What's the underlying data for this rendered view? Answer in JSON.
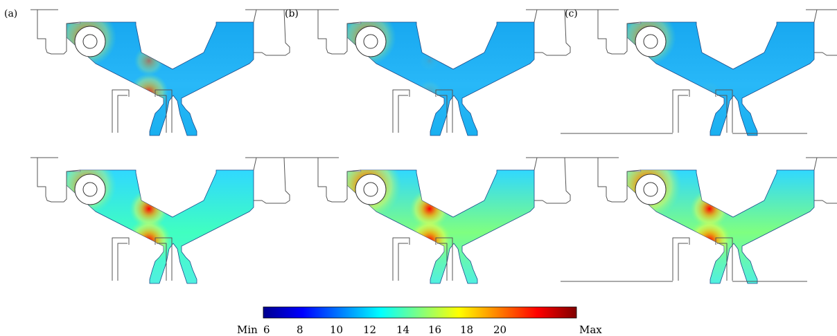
{
  "panels": [
    {
      "label": "(a)"
    },
    {
      "label": "(b)"
    },
    {
      "label": "(c)"
    }
  ],
  "cells": [
    {
      "column": "a",
      "row": "top",
      "cylinder_hot": 0.75,
      "waist_hot": 0.45,
      "neck_hot": 0.75,
      "field": 0.05
    },
    {
      "column": "b",
      "row": "top",
      "cylinder_hot": 0.7,
      "waist_hot": 0.05,
      "neck_hot": 0.15,
      "field": 0.0
    },
    {
      "column": "c",
      "row": "top",
      "cylinder_hot": 0.7,
      "waist_hot": 0.0,
      "neck_hot": 0.05,
      "field": 0.0
    },
    {
      "column": "a",
      "row": "bottom",
      "cylinder_hot": 0.75,
      "waist_hot": 0.9,
      "neck_hot": 1.0,
      "field": 0.55
    },
    {
      "column": "b",
      "row": "bottom",
      "cylinder_hot": 1.0,
      "waist_hot": 0.95,
      "neck_hot": 1.0,
      "field": 0.75
    },
    {
      "column": "c",
      "row": "bottom",
      "cylinder_hot": 1.0,
      "waist_hot": 0.9,
      "neck_hot": 1.0,
      "field": 0.85
    }
  ],
  "colorbar": {
    "ticks": [
      "Min",
      "6",
      "8",
      "10",
      "12",
      "14",
      "16",
      "18",
      "20",
      "Max"
    ],
    "colors": [
      "#00008f",
      "#0000ff",
      "#0080ff",
      "#00ffff",
      "#80ff80",
      "#ffff00",
      "#ff8000",
      "#ff0000",
      "#800000"
    ]
  }
}
